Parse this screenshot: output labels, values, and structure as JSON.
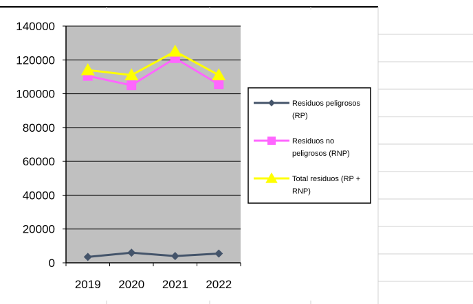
{
  "chart_data": {
    "type": "line",
    "categories": [
      "2019",
      "2020",
      "2021",
      "2022"
    ],
    "ylim": [
      0,
      140000
    ],
    "yticks": [
      0,
      20000,
      40000,
      60000,
      80000,
      100000,
      120000,
      140000
    ],
    "grid": true,
    "plot_background": "#c0c0c0",
    "legend_position": "right",
    "series": [
      {
        "name": "Residuos peligrosos (RP)",
        "legend_lines": [
          "Residuos peligrosos",
          "(RP)"
        ],
        "values": [
          3500,
          6000,
          4000,
          5500
        ],
        "color": "#44546a",
        "marker": "diamond"
      },
      {
        "name": "Residuos no peligrosos (RNP)",
        "legend_lines": [
          "Residuos no",
          "peligrosos (RNP)"
        ],
        "values": [
          110500,
          105000,
          121000,
          105500
        ],
        "color": "#ff66ff",
        "marker": "square"
      },
      {
        "name": "Total residuos (RP + RNP)",
        "legend_lines": [
          "Total residuos (RP +",
          "RNP)"
        ],
        "values": [
          114000,
          111000,
          125000,
          111000
        ],
        "color": "#ffff00",
        "marker": "triangle"
      }
    ]
  }
}
